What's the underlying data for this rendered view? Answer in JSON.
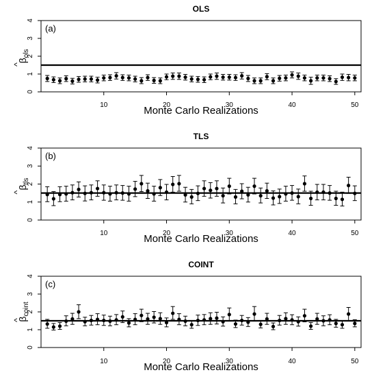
{
  "chart_data": [
    {
      "type": "scatter",
      "title": "OLS",
      "panel_label": "(a)",
      "xlabel": "Monte Carlo Realizations",
      "ylabel": "β̂ols",
      "ylabel_symbol": "β",
      "ylabel_sub": "ols",
      "xlim": [
        0,
        51
      ],
      "ylim": [
        0,
        4
      ],
      "xticks": [
        10,
        20,
        30,
        40,
        50
      ],
      "yticks": [
        0,
        1,
        2,
        3,
        4
      ],
      "reference_line": 1.5,
      "series": [
        {
          "x": [
            1,
            2,
            3,
            4,
            5,
            6,
            7,
            8,
            9,
            10,
            11,
            12,
            13,
            14,
            15,
            16,
            17,
            18,
            19,
            20,
            21,
            22,
            23,
            24,
            25,
            26,
            27,
            28,
            29,
            30,
            31,
            32,
            33,
            34,
            35,
            36,
            37,
            38,
            39,
            40,
            41,
            42,
            43,
            44,
            45,
            46,
            47,
            48,
            49,
            50
          ],
          "y": [
            0.75,
            0.68,
            0.62,
            0.74,
            0.6,
            0.7,
            0.72,
            0.72,
            0.66,
            0.78,
            0.8,
            0.9,
            0.8,
            0.78,
            0.72,
            0.62,
            0.8,
            0.64,
            0.62,
            0.84,
            0.88,
            0.88,
            0.82,
            0.72,
            0.7,
            0.68,
            0.84,
            0.88,
            0.82,
            0.82,
            0.8,
            0.9,
            0.75,
            0.62,
            0.62,
            0.85,
            0.62,
            0.76,
            0.78,
            0.95,
            0.88,
            0.78,
            0.62,
            0.78,
            0.78,
            0.74,
            0.58,
            0.82,
            0.8,
            0.78
          ],
          "lower": [
            0.58,
            0.52,
            0.46,
            0.58,
            0.44,
            0.54,
            0.56,
            0.56,
            0.5,
            0.62,
            0.64,
            0.72,
            0.64,
            0.62,
            0.56,
            0.46,
            0.64,
            0.48,
            0.46,
            0.68,
            0.7,
            0.7,
            0.66,
            0.56,
            0.54,
            0.52,
            0.68,
            0.7,
            0.66,
            0.66,
            0.64,
            0.72,
            0.58,
            0.46,
            0.46,
            0.68,
            0.46,
            0.6,
            0.62,
            0.78,
            0.7,
            0.62,
            0.42,
            0.62,
            0.62,
            0.58,
            0.42,
            0.64,
            0.62,
            0.62
          ],
          "upper": [
            0.92,
            0.84,
            0.78,
            0.9,
            0.76,
            0.86,
            0.88,
            0.88,
            0.82,
            0.94,
            0.96,
            1.08,
            0.96,
            0.94,
            0.88,
            0.8,
            0.96,
            0.8,
            0.78,
            1.0,
            1.06,
            1.06,
            0.98,
            0.88,
            0.86,
            0.84,
            1.0,
            1.06,
            0.98,
            0.98,
            0.96,
            1.08,
            0.92,
            0.78,
            0.78,
            1.02,
            0.78,
            0.92,
            0.94,
            1.12,
            1.06,
            0.94,
            0.82,
            0.94,
            0.94,
            0.9,
            0.74,
            1.0,
            0.98,
            0.94
          ]
        }
      ]
    },
    {
      "type": "scatter",
      "title": "TLS",
      "panel_label": "(b)",
      "xlabel": "Monte Carlo Realizations",
      "ylabel": "β̂tls",
      "ylabel_symbol": "β",
      "ylabel_sub": "tls",
      "xlim": [
        0,
        51
      ],
      "ylim": [
        0,
        4
      ],
      "xticks": [
        10,
        20,
        30,
        40,
        50
      ],
      "yticks": [
        0,
        1,
        2,
        3,
        4
      ],
      "reference_line": 1.5,
      "series": [
        {
          "x": [
            1,
            2,
            3,
            4,
            5,
            6,
            7,
            8,
            9,
            10,
            11,
            12,
            13,
            14,
            15,
            16,
            17,
            18,
            19,
            20,
            21,
            22,
            23,
            24,
            25,
            26,
            27,
            28,
            29,
            30,
            31,
            32,
            33,
            34,
            35,
            36,
            37,
            38,
            39,
            40,
            41,
            42,
            43,
            44,
            45,
            46,
            47,
            48,
            49,
            50
          ],
          "y": [
            1.42,
            1.18,
            1.42,
            1.45,
            1.52,
            1.7,
            1.48,
            1.52,
            1.75,
            1.52,
            1.45,
            1.52,
            1.5,
            1.45,
            1.72,
            2.02,
            1.62,
            1.45,
            1.8,
            1.55,
            1.98,
            2.02,
            1.4,
            1.28,
            1.48,
            1.75,
            1.65,
            1.75,
            1.35,
            1.88,
            1.28,
            1.6,
            1.4,
            1.88,
            1.35,
            1.62,
            1.22,
            1.3,
            1.45,
            1.5,
            1.3,
            2.02,
            1.2,
            1.55,
            1.55,
            1.5,
            1.2,
            1.15,
            1.92,
            1.48
          ],
          "lower": [
            1.02,
            0.8,
            1.02,
            1.05,
            1.12,
            1.28,
            1.06,
            1.12,
            1.32,
            1.1,
            1.05,
            1.12,
            1.1,
            1.05,
            1.3,
            1.58,
            1.2,
            1.05,
            1.36,
            1.12,
            1.55,
            1.6,
            1.0,
            0.9,
            1.08,
            1.32,
            1.22,
            1.32,
            0.95,
            1.45,
            0.9,
            1.18,
            1.0,
            1.45,
            0.95,
            1.2,
            0.84,
            0.92,
            1.05,
            1.1,
            0.9,
            1.6,
            0.82,
            1.12,
            1.12,
            1.1,
            0.82,
            0.78,
            1.48,
            1.08
          ],
          "upper": [
            1.85,
            1.58,
            1.85,
            1.88,
            1.95,
            2.12,
            1.9,
            1.95,
            2.18,
            1.95,
            1.88,
            1.95,
            1.92,
            1.88,
            2.15,
            2.48,
            2.05,
            1.88,
            2.25,
            1.98,
            2.42,
            2.48,
            1.82,
            1.7,
            1.9,
            2.18,
            2.08,
            2.18,
            1.78,
            2.32,
            1.7,
            2.02,
            1.82,
            2.32,
            1.78,
            2.05,
            1.62,
            1.72,
            1.88,
            1.92,
            1.72,
            2.45,
            1.6,
            1.98,
            1.98,
            1.92,
            1.6,
            1.55,
            2.38,
            1.9
          ]
        }
      ]
    },
    {
      "type": "scatter",
      "title": "COINT",
      "panel_label": "(c)",
      "xlabel": "Monte Carlo Realizations",
      "ylabel": "β̂coint",
      "ylabel_symbol": "β",
      "ylabel_sub": "coint",
      "xlim": [
        0,
        51
      ],
      "ylim": [
        0,
        4
      ],
      "xticks": [
        10,
        20,
        30,
        40,
        50
      ],
      "yticks": [
        0,
        1,
        2,
        3,
        4
      ],
      "reference_line": 1.5,
      "series": [
        {
          "x": [
            1,
            2,
            3,
            4,
            5,
            6,
            7,
            8,
            9,
            10,
            11,
            12,
            13,
            14,
            15,
            16,
            17,
            18,
            19,
            20,
            21,
            22,
            23,
            24,
            25,
            26,
            27,
            28,
            29,
            30,
            31,
            32,
            33,
            34,
            35,
            36,
            37,
            38,
            39,
            40,
            41,
            42,
            43,
            44,
            45,
            46,
            47,
            48,
            49,
            50
          ],
          "y": [
            1.32,
            1.15,
            1.2,
            1.48,
            1.6,
            2.0,
            1.45,
            1.52,
            1.58,
            1.52,
            1.48,
            1.55,
            1.72,
            1.38,
            1.58,
            1.8,
            1.6,
            1.7,
            1.62,
            1.4,
            1.92,
            1.58,
            1.48,
            1.28,
            1.52,
            1.55,
            1.62,
            1.65,
            1.45,
            1.85,
            1.32,
            1.52,
            1.42,
            1.88,
            1.3,
            1.6,
            1.18,
            1.52,
            1.62,
            1.55,
            1.45,
            1.78,
            1.2,
            1.6,
            1.5,
            1.55,
            1.35,
            1.28,
            1.88,
            1.35
          ],
          "lower": [
            1.08,
            0.98,
            1.02,
            1.22,
            1.3,
            1.62,
            1.22,
            1.26,
            1.28,
            1.24,
            1.22,
            1.28,
            1.4,
            1.16,
            1.28,
            1.45,
            1.3,
            1.38,
            1.3,
            1.16,
            1.58,
            1.28,
            1.22,
            1.08,
            1.24,
            1.28,
            1.3,
            1.32,
            1.2,
            1.48,
            1.12,
            1.26,
            1.18,
            1.48,
            1.1,
            1.3,
            1.0,
            1.26,
            1.3,
            1.28,
            1.2,
            1.44,
            1.02,
            1.3,
            1.22,
            1.28,
            1.14,
            1.08,
            1.52,
            1.16
          ],
          "upper": [
            1.58,
            1.35,
            1.4,
            1.78,
            1.92,
            2.4,
            1.7,
            1.8,
            1.9,
            1.82,
            1.76,
            1.85,
            2.05,
            1.62,
            1.9,
            2.15,
            1.92,
            2.02,
            1.95,
            1.66,
            2.3,
            1.9,
            1.76,
            1.5,
            1.82,
            1.85,
            1.95,
            1.98,
            1.72,
            2.22,
            1.54,
            1.8,
            1.68,
            2.3,
            1.52,
            1.92,
            1.38,
            1.8,
            1.95,
            1.84,
            1.72,
            2.15,
            1.4,
            1.92,
            1.78,
            1.84,
            1.58,
            1.5,
            2.25,
            1.56
          ]
        }
      ]
    }
  ]
}
